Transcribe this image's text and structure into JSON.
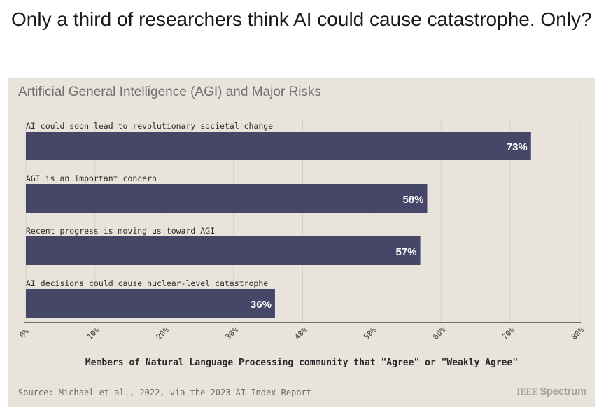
{
  "headline": "Only a third of researchers think AI could cause catastrophe. Only?",
  "chart_data": {
    "type": "bar",
    "orientation": "horizontal",
    "title": "Artificial General Intelligence (AGI) and Major Risks",
    "categories": [
      "AI could soon lead to revolutionary societal change",
      "AGI is an important concern",
      "Recent progress is moving us toward AGI",
      "AI decisions could cause nuclear-level catastrophe"
    ],
    "values": [
      73,
      58,
      57,
      36
    ],
    "value_labels": [
      "73%",
      "58%",
      "57%",
      "36%"
    ],
    "xlim": [
      0,
      80
    ],
    "xticks": [
      "0%",
      "10%",
      "20%",
      "30%",
      "40%",
      "50%",
      "60%",
      "70%",
      "80%"
    ],
    "xlabel": "Members of Natural Language Processing community that \"Agree\" or \"Weakly Agree\"",
    "ylabel": "",
    "grid": true,
    "bar_color": "#464768",
    "background_color": "#e8e4dc"
  },
  "footer": {
    "source": "Source: Michael et al., 2022, via the 2023 AI Index Report",
    "brand_ieee": "IEEE",
    "brand_spectrum": "Spectrum"
  }
}
